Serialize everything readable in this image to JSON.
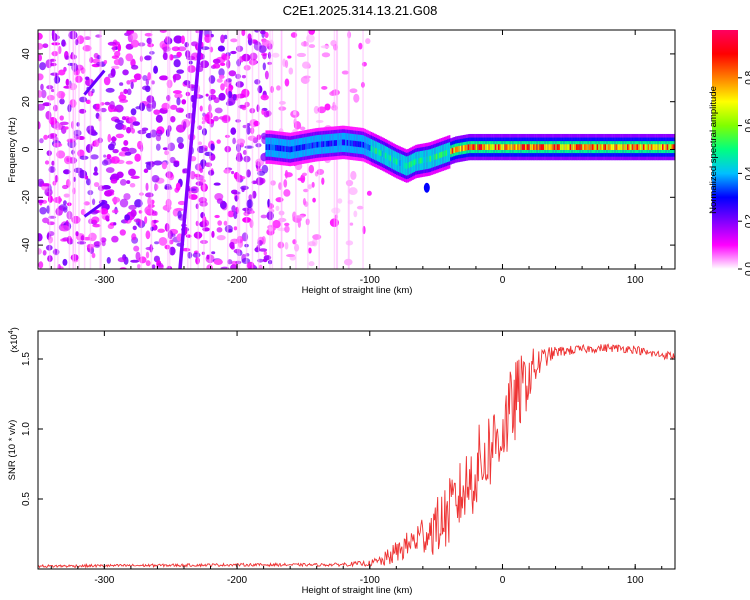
{
  "title": "C2E1.2025.314.13.21.G08",
  "chart_data": [
    {
      "type": "heatmap",
      "panel": "spectrogram",
      "xlabel": "Height of straight line (km)",
      "ylabel": "Frequency (Hz)",
      "xlim": [
        -350,
        130
      ],
      "ylim": [
        -50,
        50
      ],
      "xticks": [
        -300,
        -200,
        -100,
        0,
        100
      ],
      "yticks": [
        -40,
        -20,
        0,
        20,
        40
      ],
      "signal_trace": {
        "description_free": true,
        "x": [
          -175,
          -160,
          -140,
          -120,
          -105,
          -90,
          -80,
          -72,
          -65,
          -55,
          -45,
          -35,
          -25,
          -15,
          -5,
          5,
          20,
          40,
          60,
          80,
          100,
          120,
          130
        ],
        "y": [
          1,
          0,
          2,
          3,
          2,
          -2,
          -5,
          -7,
          -5,
          -4,
          -2,
          0,
          1,
          1,
          1,
          1,
          1,
          1,
          1,
          1,
          1,
          1,
          1
        ]
      },
      "colorbar": {
        "label": "Normalized spectral amplitude",
        "range": [
          0,
          1
        ],
        "ticks": [
          "0.0",
          "0.2",
          "0.4",
          "0.6",
          "0.8"
        ],
        "colormap": [
          "#ffffff",
          "#ff00ff",
          "#8000ff",
          "#0000ff",
          "#00c0ff",
          "#00ff80",
          "#80ff00",
          "#ffff00",
          "#ff8000",
          "#ff0000",
          "#ff0060"
        ]
      }
    },
    {
      "type": "line",
      "panel": "snr",
      "xlabel": "Height of straight line (km)",
      "ylabel": "SNR (10 * v/v)",
      "y_multiplier": "(x10",
      "y_multiplier_exp": "4",
      "y_multiplier_close": ")",
      "xlim": [
        -350,
        130
      ],
      "ylim": [
        0,
        1.7
      ],
      "xticks": [
        -300,
        -200,
        -100,
        0,
        100
      ],
      "yticks": [
        "0.5",
        "1.0",
        "1.5"
      ],
      "ytick_values": [
        0.5,
        1.0,
        1.5
      ],
      "color": "#ee3333",
      "series_envelope": {
        "x": [
          -350,
          -200,
          -130,
          -100,
          -90,
          -80,
          -70,
          -60,
          -50,
          -40,
          -30,
          -20,
          -10,
          0,
          10,
          20,
          30,
          40,
          60,
          80,
          100,
          110,
          130
        ],
        "mean": [
          0.02,
          0.03,
          0.03,
          0.04,
          0.06,
          0.12,
          0.18,
          0.25,
          0.3,
          0.4,
          0.55,
          0.7,
          0.85,
          1.0,
          1.2,
          1.38,
          1.5,
          1.55,
          1.57,
          1.58,
          1.57,
          1.54,
          1.52
        ],
        "spread": [
          0.01,
          0.01,
          0.01,
          0.02,
          0.05,
          0.08,
          0.1,
          0.15,
          0.2,
          0.25,
          0.25,
          0.3,
          0.3,
          0.3,
          0.3,
          0.2,
          0.08,
          0.04,
          0.03,
          0.03,
          0.03,
          0.03,
          0.03
        ]
      }
    }
  ]
}
